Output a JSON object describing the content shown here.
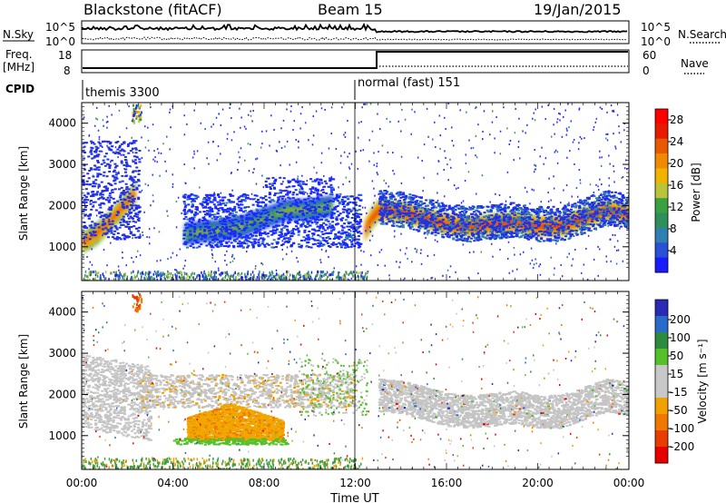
{
  "header": {
    "station": "Blackstone (fitACF)",
    "beam": "Beam 15",
    "date": "19/Jan/2015"
  },
  "aux_panels": {
    "nsky_label": "N.Sky",
    "nsearch_label": "N.Search",
    "freq_label_1": "Freq.",
    "freq_label_2": "[MHz]",
    "nave_label": "Nave",
    "cpid_label": "CPID",
    "noise_ticks": [
      "10^5",
      "10^0"
    ],
    "freq_ticks": [
      "18",
      "8"
    ],
    "nave_ticks": [
      "60",
      "0"
    ],
    "cpid_segments": [
      {
        "name": "themis 3300",
        "start_hour": 0,
        "end_hour": 12
      },
      {
        "name": "normal (fast) 151",
        "start_hour": 12,
        "end_hour": 24
      }
    ]
  },
  "colors": {
    "power_scale": [
      "#1a1aff",
      "#2a50d8",
      "#2f7fb0",
      "#2f8f5a",
      "#3aa040",
      "#b8c43a",
      "#f0b400",
      "#f08a00",
      "#e85a00",
      "#e81a00",
      "#ff0000"
    ],
    "velocity_scale": [
      "#2a2ab4",
      "#2a6ac8",
      "#2e8a3c",
      "#55c02a",
      "#c8c8c8",
      "#c8c8c8",
      "#f0a000",
      "#f07800",
      "#e83c00",
      "#e80000"
    ]
  },
  "chart_data": [
    {
      "type": "heatmap",
      "panel": "power",
      "xlabel": "",
      "ylabel": "Slant Range [km]",
      "ylim": [
        180,
        4500
      ],
      "yticks": [
        "1000",
        "2000",
        "3000",
        "4000"
      ],
      "colorbar_label": "Power [dB]",
      "colorbar_ticks": [
        "4",
        "8",
        "12",
        "16",
        "20",
        "24",
        "28"
      ],
      "colorbar_range": [
        0,
        30
      ],
      "bands": [
        {
          "x": [
            0,
            0.3,
            0.6,
            1,
            1.5,
            2,
            2.3
          ],
          "y": [
            1100,
            1200,
            1300,
            1500,
            1800,
            2100,
            2300
          ],
          "value": 24
        },
        {
          "x": [
            4.5,
            5,
            6,
            7,
            8,
            9,
            10,
            11
          ],
          "y": [
            1300,
            1350,
            1400,
            1500,
            1700,
            1900,
            1900,
            2000
          ],
          "value": 14
        },
        {
          "x": [
            12.4,
            12.7,
            13,
            14,
            15,
            16,
            17,
            18,
            19,
            20,
            21,
            22,
            23,
            24
          ],
          "y": [
            1400,
            1700,
            1900,
            1850,
            1700,
            1550,
            1500,
            1550,
            1600,
            1500,
            1500,
            1700,
            1900,
            1800
          ],
          "value": 26
        }
      ]
    },
    {
      "type": "heatmap",
      "panel": "velocity",
      "xlabel": "Time UT",
      "ylabel": "Slant Range [km]",
      "ylim": [
        180,
        4500
      ],
      "yticks": [
        "1000",
        "2000",
        "3000",
        "4000"
      ],
      "xticks": [
        "00:00",
        "04:00",
        "08:00",
        "12:00",
        "16:00",
        "20:00",
        "00:00"
      ],
      "xlim": [
        0,
        24
      ],
      "colorbar_label": "Velocity [m s⁻¹]",
      "colorbar_ticks": [
        "200",
        "100",
        "50",
        "15",
        "-15",
        "-50",
        "-100",
        "-200"
      ],
      "colorbar_range": [
        -250,
        250
      ],
      "bands": [
        {
          "x": [
            4.5,
            6,
            8,
            9.5
          ],
          "y": [
            1200,
            1300,
            1300,
            1400
          ],
          "value": -40
        },
        {
          "x": [
            0,
            2.5,
            12,
            24
          ],
          "y": [
            1800,
            2200,
            2000,
            1900
          ],
          "value": 0
        }
      ]
    }
  ]
}
